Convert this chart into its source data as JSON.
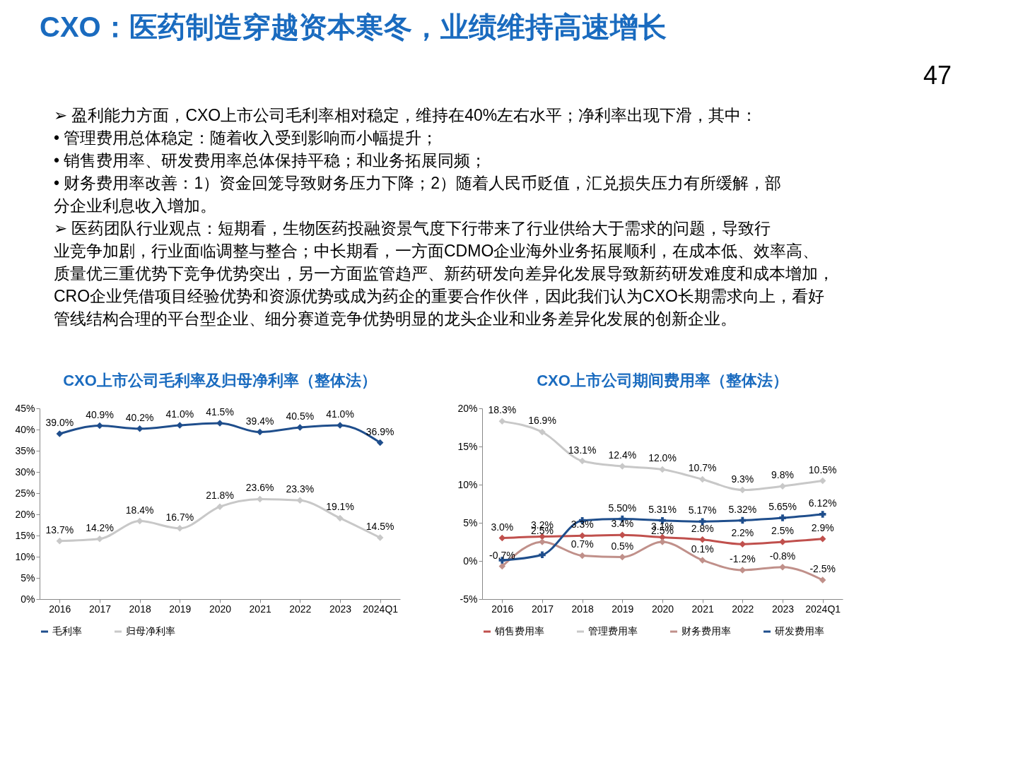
{
  "chart_data": [
    {
      "type": "other",
      "title": "CXO：医药制造穿越资本寒冬，业绩维持高速增长",
      "subtitle": "47",
      "annotations": [
        "➢ 盈利能力方面，CXO上市公司毛利率相对稳定，维持在40%左右水平；净利率出现下滑，其中：",
        "     •   管理费用总体稳定：随着收入受到影响而小幅提升；",
        "     •   销售费用率、研发费用率总体保持平稳；和业务拓展同频；",
        "     •   财务费用率改善：1）资金回笼导致财务压力下降；2）随着人民币贬值，汇兑损失压力有所缓解，部",
        "          分企业利息收入增加。",
        "➢ 医药团队行业观点：短期看，生物医药投融资景气度下行带来了行业供给大于需求的问题，导致行",
        "     业竞争加剧，行业面临调整与整合；中长期看，一方面CDMO企业海外业务拓展顺利，在成本低、效率高、",
        "     质量优三重优势下竞争优势突出，另一方面监管趋严、新药研发向差异化发展导致新药研发难度和成本增加，",
        "     CRO企业凭借项目经验优势和资源优势或成为药企的重要合作伙伴，因此我们认为CXO长期需求向上，看好",
        "     管线结构合理的平台型企业、细分赛道竞争优势明显的龙头企业和业务差异化发展的创新企业。"
      ]
    },
    {
      "type": "line",
      "title": "CXO上市公司毛利率及归母净利率（整体法）",
      "categories": [
        "2016",
        "2017",
        "2018",
        "2019",
        "2020",
        "2021",
        "2022",
        "2023",
        "2024Q1"
      ],
      "ylim": [
        0,
        45
      ],
      "yticks": [
        {
          "value": 0,
          "label": "0%"
        },
        {
          "value": 5,
          "label": "5%"
        },
        {
          "value": 10,
          "label": "10%"
        },
        {
          "value": 15,
          "label": "15%"
        },
        {
          "value": 20,
          "label": "20%"
        },
        {
          "value": 25,
          "label": "25%"
        },
        {
          "value": 30,
          "label": "30%"
        },
        {
          "value": 35,
          "label": "35%"
        },
        {
          "value": 40,
          "label": "40%"
        },
        {
          "value": 45,
          "label": "45%"
        }
      ],
      "grid": false,
      "legend": "bottom",
      "line_style": "solid",
      "series": [
        {
          "name": "毛利率",
          "color": "#1f4e8c",
          "marker": "diamond",
          "values": [
            39.0,
            40.9,
            40.2,
            41.0,
            41.5,
            39.4,
            40.5,
            41.0,
            36.9
          ],
          "value_labels": [
            "39.0%",
            "40.9%",
            "40.2%",
            "41.0%",
            "41.5%",
            "39.4%",
            "40.5%",
            "41.0%",
            "36.9%"
          ]
        },
        {
          "name": "归母净利率",
          "color": "#c8c8c8",
          "marker": "diamond",
          "values": [
            13.7,
            14.2,
            18.4,
            16.7,
            21.8,
            23.6,
            23.3,
            19.1,
            14.5
          ],
          "value_labels": [
            "13.7%",
            "14.2%",
            "18.4%",
            "16.7%",
            "21.8%",
            "23.6%",
            "23.3%",
            "19.1%",
            "14.5%"
          ]
        }
      ]
    },
    {
      "type": "line",
      "title": "CXO上市公司期间费用率（整体法）",
      "categories": [
        "2016",
        "2017",
        "2018",
        "2019",
        "2020",
        "2021",
        "2022",
        "2023",
        "2024Q1"
      ],
      "ylim": [
        -5,
        20
      ],
      "yticks": [
        {
          "value": -5,
          "label": "-5%"
        },
        {
          "value": 0,
          "label": "0%"
        },
        {
          "value": 5,
          "label": "5%"
        },
        {
          "value": 10,
          "label": "10%"
        },
        {
          "value": 15,
          "label": "15%"
        },
        {
          "value": 20,
          "label": "20%"
        }
      ],
      "grid": false,
      "legend": "bottom",
      "line_style": "solid",
      "series": [
        {
          "name": "销售费用率",
          "color": "#c0504d",
          "marker": "diamond",
          "values": [
            3.0,
            3.2,
            3.3,
            3.4,
            3.1,
            2.8,
            2.2,
            2.5,
            2.9
          ],
          "value_labels": [
            "3.0%",
            "3.2%",
            "3.3%",
            "3.4%",
            "3.1%",
            "2.8%",
            "2.2%",
            "2.5%",
            "2.9%"
          ]
        },
        {
          "name": "管理费用率",
          "color": "#c8c8c8",
          "marker": "diamond",
          "values": [
            18.3,
            16.9,
            13.1,
            12.4,
            12.0,
            10.7,
            9.3,
            9.8,
            10.5
          ],
          "value_labels": [
            "18.3%",
            "16.9%",
            "13.1%",
            "12.4%",
            "12.0%",
            "10.7%",
            "9.3%",
            "9.8%",
            "10.5%"
          ]
        },
        {
          "name": "财务费用率",
          "color": "#c0908a",
          "marker": "diamond",
          "values": [
            -0.7,
            2.5,
            0.7,
            0.5,
            2.5,
            0.1,
            -1.2,
            -0.8,
            -2.5
          ],
          "value_labels": [
            "-0.7%",
            "2.5%",
            "0.7%",
            "0.5%",
            "2.5%",
            "0.1%",
            "-1.2%",
            "-0.8%",
            "-2.5%"
          ]
        },
        {
          "name": "研发费用率",
          "color": "#1f4e8c",
          "marker": "cross",
          "values": [
            0.1,
            0.8,
            5.3,
            5.5,
            5.31,
            5.17,
            5.32,
            5.65,
            6.12
          ],
          "value_labels": [
            null,
            null,
            null,
            "5.50%",
            "5.31%",
            "5.17%",
            "5.32%",
            "5.65%",
            "6.12%"
          ]
        }
      ]
    }
  ]
}
